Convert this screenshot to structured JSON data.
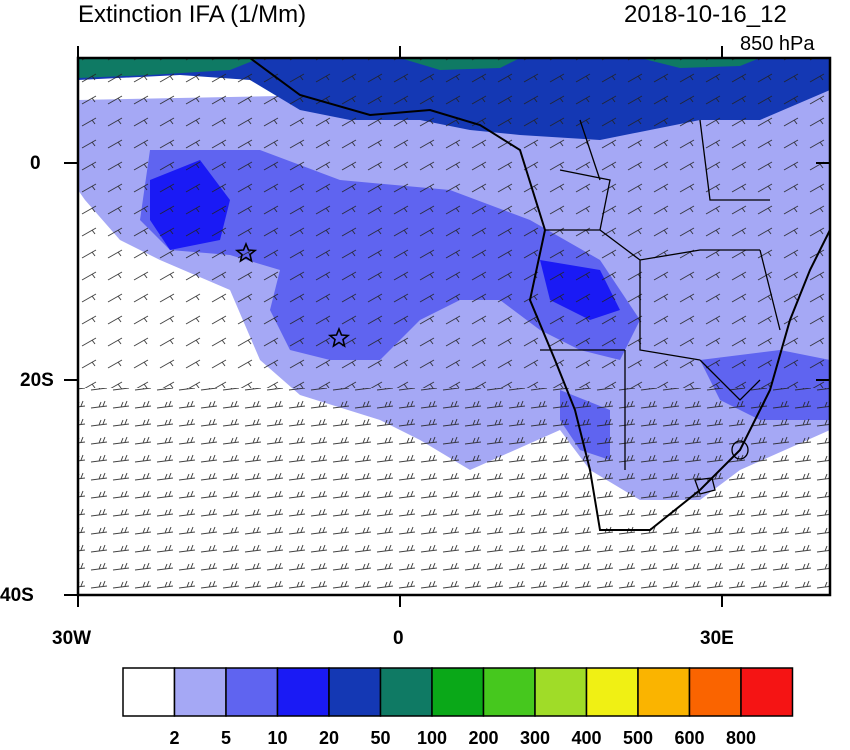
{
  "header": {
    "title": "Extinction IFA (1/Mm)",
    "datetime": "2018-10-16_12",
    "level": "850 hPa"
  },
  "axes": {
    "lat_labels": [
      "0",
      "20S",
      "40S"
    ],
    "lon_labels": [
      "30W",
      "0",
      "30E"
    ]
  },
  "colorbar": {
    "labels": [
      "2",
      "5",
      "10",
      "20",
      "50",
      "100",
      "200",
      "300",
      "400",
      "500",
      "600",
      "800"
    ],
    "colors": [
      "#ffffff",
      "#a5a8f5",
      "#5f64f0",
      "#1a1af5",
      "#1438b4",
      "#0f7a64",
      "#0aa818",
      "#46c81e",
      "#a0dc28",
      "#f0f014",
      "#fab400",
      "#fa6400",
      "#f51414"
    ]
  },
  "map": {
    "markers": [
      "star",
      "star"
    ],
    "land_outline_color": "#000000"
  }
}
